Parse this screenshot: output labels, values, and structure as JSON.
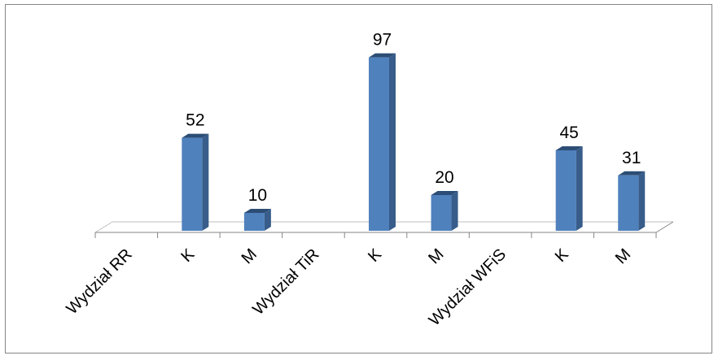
{
  "chart_data": {
    "type": "bar",
    "style": "3d-column",
    "categories": [
      "Wydział RR",
      "K",
      "M",
      "Wydział TiR",
      "K",
      "M",
      "Wydział WFiS",
      "K",
      "M"
    ],
    "values": [
      null,
      52,
      10,
      null,
      97,
      20,
      null,
      45,
      31
    ],
    "data_labels": [
      "",
      "52",
      "10",
      "",
      "97",
      "20",
      "",
      "45",
      "31"
    ],
    "ylim": [
      0,
      100
    ],
    "grid": false,
    "legend": "none",
    "title": "",
    "xlabel": "",
    "ylabel": ""
  },
  "colors": {
    "bar_front": "#4F81BD",
    "bar_side": "#385D8A",
    "bar_top": "#2C4D75",
    "axis": "#868686",
    "floor_line": "#BFBFBF"
  }
}
